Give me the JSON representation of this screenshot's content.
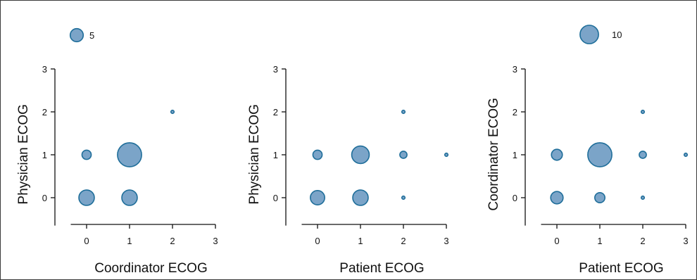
{
  "colors": {
    "fill": "#7BA4C8",
    "stroke": "#1F6E9A",
    "axis": "#111111"
  },
  "legend": [
    {
      "label": "5",
      "value": 5
    },
    {
      "label": "10",
      "value": 10
    }
  ],
  "chart_data": [
    {
      "type": "scatter",
      "subtype": "bubble",
      "xlabel": "Coordinator ECOG",
      "ylabel": "Physician ECOG",
      "xticks": [
        "0",
        "1",
        "2",
        "3"
      ],
      "yticks": [
        "0",
        "1",
        "2",
        "3"
      ],
      "xlim": [
        -0.5,
        3
      ],
      "ylim": [
        -0.65,
        3
      ],
      "points": [
        {
          "x": 0,
          "y": 0,
          "size": 7
        },
        {
          "x": 1,
          "y": 0,
          "size": 7
        },
        {
          "x": 0,
          "y": 1,
          "size": 2.5
        },
        {
          "x": 1,
          "y": 1,
          "size": 17
        },
        {
          "x": 2,
          "y": 2,
          "size": 0.3
        }
      ]
    },
    {
      "type": "scatter",
      "subtype": "bubble",
      "xlabel": "Patient ECOG",
      "ylabel": "Physician ECOG",
      "xticks": [
        "0",
        "1",
        "2",
        "3"
      ],
      "yticks": [
        "0",
        "1",
        "2",
        "3"
      ],
      "xlim": [
        -0.5,
        3
      ],
      "ylim": [
        -0.65,
        3
      ],
      "points": [
        {
          "x": 0,
          "y": 0,
          "size": 6
        },
        {
          "x": 1,
          "y": 0,
          "size": 7
        },
        {
          "x": 2,
          "y": 0,
          "size": 0.3
        },
        {
          "x": 0,
          "y": 1,
          "size": 2.5
        },
        {
          "x": 1,
          "y": 1,
          "size": 9
        },
        {
          "x": 2,
          "y": 1,
          "size": 1.5
        },
        {
          "x": 3,
          "y": 1,
          "size": 0.3
        },
        {
          "x": 2,
          "y": 2,
          "size": 0.3
        }
      ]
    },
    {
      "type": "scatter",
      "subtype": "bubble",
      "xlabel": "Patient ECOG",
      "ylabel": "Coordinator ECOG",
      "xticks": [
        "0",
        "1",
        "2",
        "3"
      ],
      "yticks": [
        "0",
        "1",
        "2",
        "3"
      ],
      "xlim": [
        -0.5,
        3
      ],
      "ylim": [
        -0.65,
        3
      ],
      "points": [
        {
          "x": 0,
          "y": 0,
          "size": 4.5
        },
        {
          "x": 1,
          "y": 0,
          "size": 3
        },
        {
          "x": 2,
          "y": 0,
          "size": 0.3
        },
        {
          "x": 0,
          "y": 1,
          "size": 3.5
        },
        {
          "x": 1,
          "y": 1,
          "size": 17
        },
        {
          "x": 2,
          "y": 1,
          "size": 1.5
        },
        {
          "x": 3,
          "y": 1,
          "size": 0.3
        },
        {
          "x": 2,
          "y": 2,
          "size": 0.3
        }
      ]
    }
  ]
}
